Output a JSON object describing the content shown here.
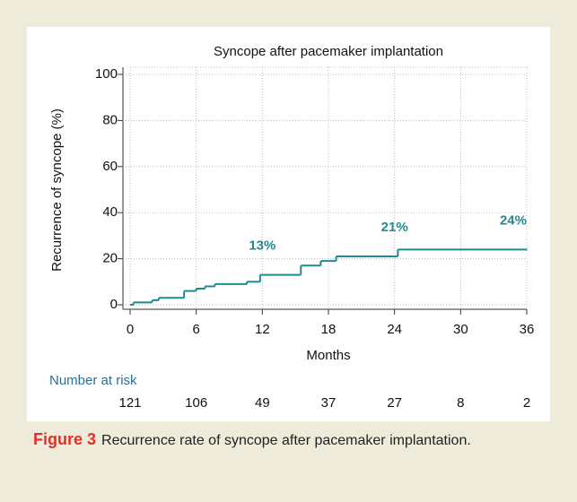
{
  "chart_data": {
    "type": "step",
    "title": "Syncope after pacemaker implantation",
    "x_label": "Months",
    "y_label": "Recurrence of syncope (%)",
    "x": [
      0,
      0.3,
      2,
      2.6,
      4.9,
      6,
      6.8,
      7.7,
      10.6,
      11.8,
      15.5,
      17.3,
      18.7,
      24.3,
      36
    ],
    "values": [
      0,
      1,
      2,
      3,
      6,
      7,
      8,
      9,
      10,
      13,
      17,
      19,
      21,
      24,
      24
    ],
    "color": "#1f8a90",
    "xlim": [
      0,
      36
    ],
    "xticks": [
      0,
      6,
      12,
      18,
      24,
      30,
      36
    ],
    "ylim": [
      0,
      100
    ],
    "yticks": [
      0,
      20,
      40,
      60,
      80,
      100
    ],
    "grid": true,
    "annotations": [
      {
        "text": "13%",
        "x": 12
      },
      {
        "text": "21%",
        "x": 24
      },
      {
        "text": "24%",
        "x": 36
      }
    ],
    "risk_table": {
      "title": "Number at risk",
      "values": [
        121,
        106,
        49,
        37,
        27,
        8,
        2
      ]
    }
  },
  "caption": {
    "label": "Figure 3",
    "text": "Recurrence rate of syncope after pacemaker implantation."
  }
}
